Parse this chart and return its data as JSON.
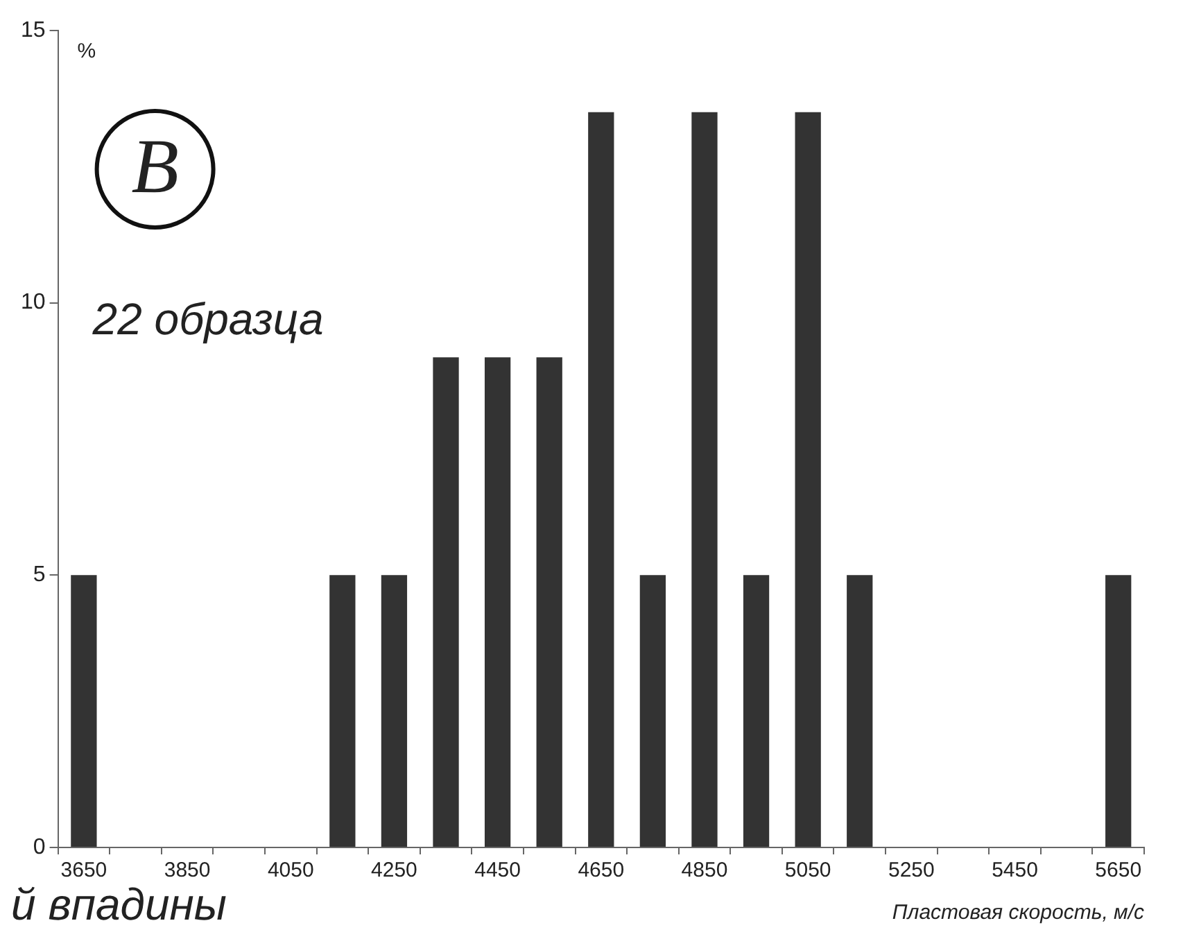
{
  "chart_data": {
    "type": "bar",
    "xlabel": "Пластовая скорость, м/с",
    "ylabel": "%",
    "categories": [
      "3650",
      null,
      "3850",
      null,
      "4050",
      null,
      "4250",
      null,
      "4450",
      null,
      "4650",
      null,
      "4850",
      null,
      "5050",
      null,
      "5250",
      null,
      "5450",
      null,
      "5650"
    ],
    "values": [
      5,
      0,
      0,
      0,
      0,
      5,
      5,
      9,
      9,
      9,
      13.5,
      5,
      13.5,
      5,
      13.5,
      5,
      0,
      0,
      0,
      0,
      5
    ],
    "color": "#333333",
    "ylim": [
      0,
      15
    ],
    "yticks": [
      0,
      5,
      10,
      15
    ],
    "grid": false,
    "legend": false,
    "annotations": [
      "В",
      "22 образца",
      "й впадины"
    ]
  }
}
